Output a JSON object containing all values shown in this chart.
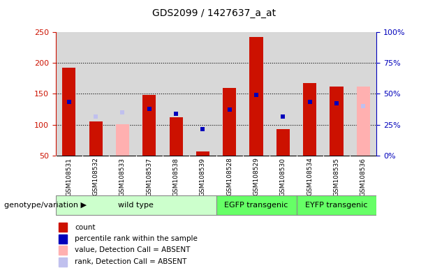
{
  "title": "GDS2099 / 1427637_a_at",
  "samples": [
    "GSM108531",
    "GSM108532",
    "GSM108533",
    "GSM108537",
    "GSM108538",
    "GSM108539",
    "GSM108528",
    "GSM108529",
    "GSM108530",
    "GSM108534",
    "GSM108535",
    "GSM108536"
  ],
  "count_values": [
    192,
    105,
    null,
    148,
    112,
    56,
    160,
    242,
    93,
    168,
    162,
    null
  ],
  "count_absent": [
    null,
    null,
    101,
    null,
    null,
    null,
    null,
    null,
    null,
    null,
    null,
    162
  ],
  "rank_values": [
    137,
    null,
    null,
    125,
    118,
    93,
    124,
    148,
    113,
    137,
    135,
    null
  ],
  "rank_absent": [
    null,
    113,
    120,
    null,
    null,
    null,
    null,
    null,
    null,
    null,
    null,
    130
  ],
  "ylim_left": [
    50,
    250
  ],
  "ylim_right": [
    0,
    100
  ],
  "yticks_left": [
    50,
    100,
    150,
    200,
    250
  ],
  "yticks_right": [
    0,
    25,
    50,
    75,
    100
  ],
  "ytick_labels_right": [
    "0%",
    "25%",
    "50%",
    "75%",
    "100%"
  ],
  "color_count": "#cc1100",
  "color_count_absent": "#ffb0b0",
  "color_rank": "#0000bb",
  "color_rank_absent": "#c0c0ee",
  "legend_items": [
    {
      "label": "count",
      "color": "#cc1100"
    },
    {
      "label": "percentile rank within the sample",
      "color": "#0000bb"
    },
    {
      "label": "value, Detection Call = ABSENT",
      "color": "#ffb0b0"
    },
    {
      "label": "rank, Detection Call = ABSENT",
      "color": "#c0c0ee"
    }
  ],
  "bar_width": 0.5,
  "group_wild_color": "#ccffcc",
  "group_transgenic_color": "#66ff66",
  "group_wild_label": "wild type",
  "group_egfp_label": "EGFP transgenic",
  "group_eyfp_label": "EYFP transgenic",
  "genotype_label": "genotype/variation",
  "plot_bg": "#d8d8d8",
  "tick_area_bg": "#d0d0d0",
  "fig_bg": "#ffffff"
}
